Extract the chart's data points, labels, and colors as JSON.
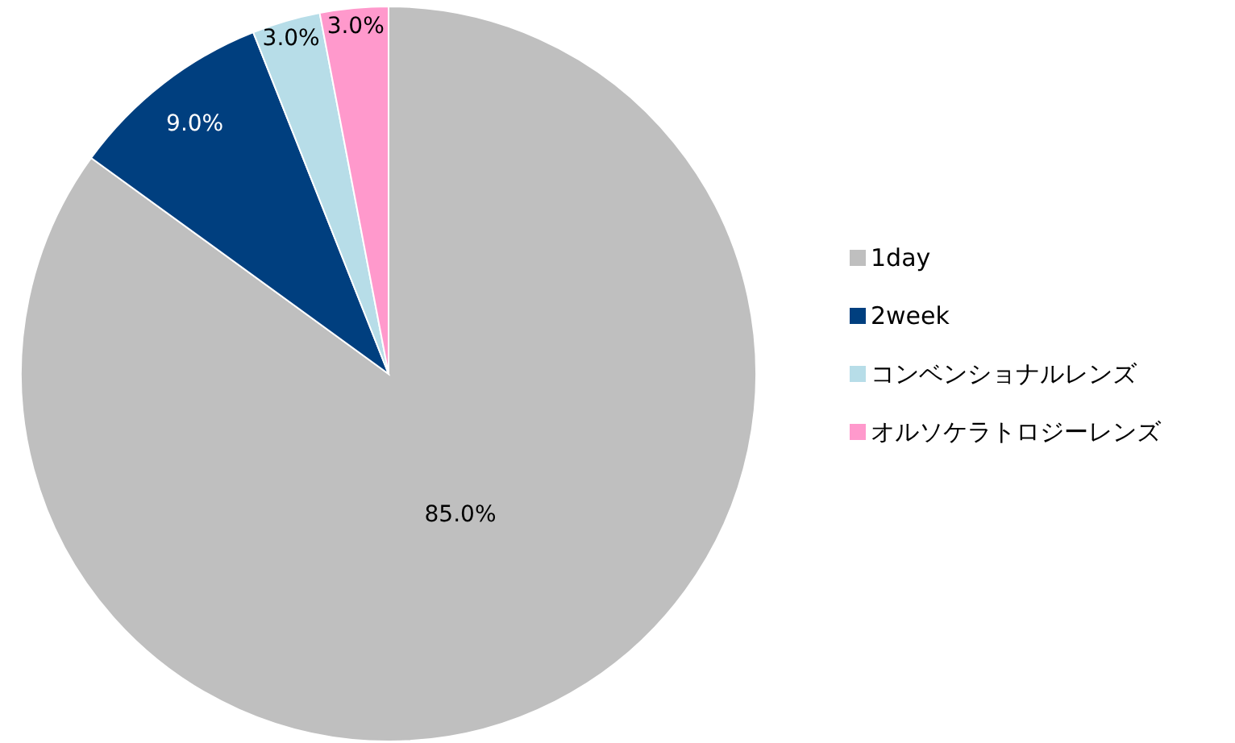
{
  "chart_data": {
    "type": "pie",
    "categories": [
      "1day",
      "2week",
      "コンベンショナルレンズ",
      "オルソケラトロジーレンズ"
    ],
    "values": [
      85,
      9,
      3,
      3
    ],
    "colors": [
      "#bfbfbf",
      "#003f7f",
      "#b7dde8",
      "#ff99cc"
    ],
    "value_labels": [
      "85.0%",
      "9.0%",
      "3.0%",
      "3.0%"
    ],
    "legend": "right"
  }
}
